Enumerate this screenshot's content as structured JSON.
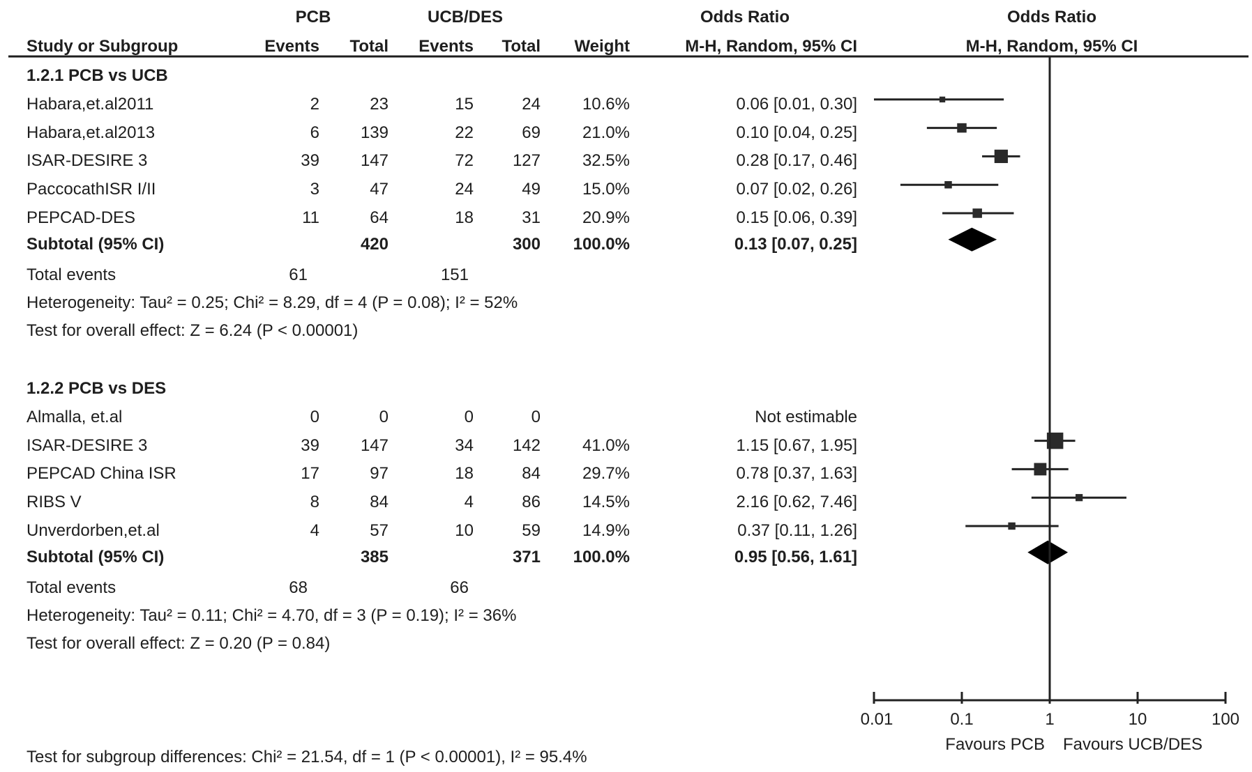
{
  "header": {
    "pcb": "PCB",
    "ucb_des": "UCB/DES",
    "study": "Study or Subgroup",
    "events_1": "Events",
    "total_1": "Total",
    "events_2": "Events",
    "total_2": "Total",
    "weight": "Weight",
    "or_title": "Odds Ratio",
    "or_method": "M-H, Random, 95% CI",
    "plot_title": "Odds Ratio",
    "plot_method": "M-H, Random, 95% CI"
  },
  "chart_data": {
    "type": "forest",
    "scale": "log",
    "xlim": [
      0.01,
      100
    ],
    "x_ticks": [
      "0.01",
      "0.1",
      "1",
      "10",
      "100"
    ],
    "favours_left": "Favours PCB",
    "favours_right": "Favours UCB/DES",
    "subgroups": [
      {
        "title": "1.2.1 PCB vs UCB",
        "studies": [
          {
            "name": "Habara,et.al2011",
            "e1": "2",
            "n1": "23",
            "e2": "15",
            "n2": "24",
            "weight": "10.6%",
            "w": 10.6,
            "ci_text": "0.06 [0.01, 0.30]",
            "or": 0.06,
            "lo": 0.01,
            "hi": 0.3
          },
          {
            "name": "Habara,et.al2013",
            "e1": "6",
            "n1": "139",
            "e2": "22",
            "n2": "69",
            "weight": "21.0%",
            "w": 21.0,
            "ci_text": "0.10 [0.04, 0.25]",
            "or": 0.1,
            "lo": 0.04,
            "hi": 0.25
          },
          {
            "name": "ISAR-DESIRE 3",
            "e1": "39",
            "n1": "147",
            "e2": "72",
            "n2": "127",
            "weight": "32.5%",
            "w": 32.5,
            "ci_text": "0.28 [0.17, 0.46]",
            "or": 0.28,
            "lo": 0.17,
            "hi": 0.46
          },
          {
            "name": "PaccocathISR I/II",
            "e1": "3",
            "n1": "47",
            "e2": "24",
            "n2": "49",
            "weight": "15.0%",
            "w": 15.0,
            "ci_text": "0.07 [0.02, 0.26]",
            "or": 0.07,
            "lo": 0.02,
            "hi": 0.26
          },
          {
            "name": "PEPCAD-DES",
            "e1": "11",
            "n1": "64",
            "e2": "18",
            "n2": "31",
            "weight": "20.9%",
            "w": 20.9,
            "ci_text": "0.15 [0.06, 0.39]",
            "or": 0.15,
            "lo": 0.06,
            "hi": 0.39
          }
        ],
        "subtotal": {
          "label": "Subtotal (95% CI)",
          "n1": "420",
          "n2": "300",
          "weight": "100.0%",
          "ci_text": "0.13 [0.07, 0.25]",
          "or": 0.13,
          "lo": 0.07,
          "hi": 0.25
        },
        "total_events": {
          "label": "Total events",
          "e1": "61",
          "e2": "151"
        },
        "heterogeneity": "Heterogeneity: Tau² = 0.25; Chi² = 8.29, df = 4 (P = 0.08); I² = 52%",
        "overall": "Test for overall effect: Z = 6.24 (P < 0.00001)"
      },
      {
        "title": "1.2.2 PCB vs DES",
        "studies": [
          {
            "name": "Almalla, et.al",
            "e1": "0",
            "n1": "0",
            "e2": "0",
            "n2": "0",
            "weight": "",
            "w": 0,
            "ci_text": "Not estimable",
            "or": null,
            "lo": null,
            "hi": null
          },
          {
            "name": "ISAR-DESIRE 3",
            "e1": "39",
            "n1": "147",
            "e2": "34",
            "n2": "142",
            "weight": "41.0%",
            "w": 41.0,
            "ci_text": "1.15 [0.67, 1.95]",
            "or": 1.15,
            "lo": 0.67,
            "hi": 1.95
          },
          {
            "name": "PEPCAD China ISR",
            "e1": "17",
            "n1": "97",
            "e2": "18",
            "n2": "84",
            "weight": "29.7%",
            "w": 29.7,
            "ci_text": "0.78 [0.37, 1.63]",
            "or": 0.78,
            "lo": 0.37,
            "hi": 1.63
          },
          {
            "name": "RIBS V",
            "e1": "8",
            "n1": "84",
            "e2": "4",
            "n2": "86",
            "weight": "14.5%",
            "w": 14.5,
            "ci_text": "2.16 [0.62, 7.46]",
            "or": 2.16,
            "lo": 0.62,
            "hi": 7.46
          },
          {
            "name": "Unverdorben,et.al",
            "e1": "4",
            "n1": "57",
            "e2": "10",
            "n2": "59",
            "weight": "14.9%",
            "w": 14.9,
            "ci_text": "0.37 [0.11, 1.26]",
            "or": 0.37,
            "lo": 0.11,
            "hi": 1.26
          }
        ],
        "subtotal": {
          "label": "Subtotal (95% CI)",
          "n1": "385",
          "n2": "371",
          "weight": "100.0%",
          "ci_text": "0.95 [0.56, 1.61]",
          "or": 0.95,
          "lo": 0.56,
          "hi": 1.61
        },
        "total_events": {
          "label": "Total events",
          "e1": "68",
          "e2": "66"
        },
        "heterogeneity": "Heterogeneity: Tau² = 0.11; Chi² = 4.70, df = 3 (P = 0.19); I² = 36%",
        "overall": "Test for overall effect: Z = 0.20 (P = 0.84)"
      }
    ],
    "subgroup_differences": "Test for subgroup differences: Chi² = 21.54, df = 1 (P < 0.00001), I² = 95.4%"
  }
}
